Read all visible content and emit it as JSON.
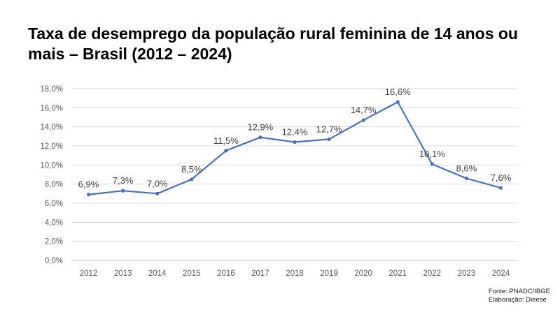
{
  "chart_data": {
    "type": "line",
    "title": "Taxa de desemprego da população rural feminina de 14 anos ou mais – Brasil (2012 – 2024)",
    "x": [
      "2012",
      "2013",
      "2014",
      "2015",
      "2016",
      "2017",
      "2018",
      "2019",
      "2020",
      "2021",
      "2022",
      "2023",
      "2024"
    ],
    "series": [
      {
        "values": [
          6.9,
          7.3,
          7.0,
          8.5,
          11.5,
          12.9,
          12.4,
          12.7,
          14.7,
          16.6,
          10.1,
          8.6,
          7.6
        ],
        "labels": [
          "6,9%",
          "7,3%",
          "7,0%",
          "8,5%",
          "11,5%",
          "12,9%",
          "12,4%",
          "12,7%",
          "14,7%",
          "16,6%",
          "10,1%",
          "8,6%",
          "7,6%"
        ]
      }
    ],
    "ylim": [
      0,
      18
    ],
    "yticks": [
      0,
      2,
      4,
      6,
      8,
      10,
      12,
      14,
      16,
      18
    ],
    "ytick_labels": [
      "0,0%",
      "2,0%",
      "4,0%",
      "6,0%",
      "8,0%",
      "10,0%",
      "12,0%",
      "14,0%",
      "16,0%",
      "18,0%"
    ],
    "grid": true,
    "legend": "none",
    "line_color": "#4472C4"
  },
  "footer": {
    "source": "Fonte: PNADC/IBGE",
    "elaboration": "Elaboração: Dieese"
  }
}
